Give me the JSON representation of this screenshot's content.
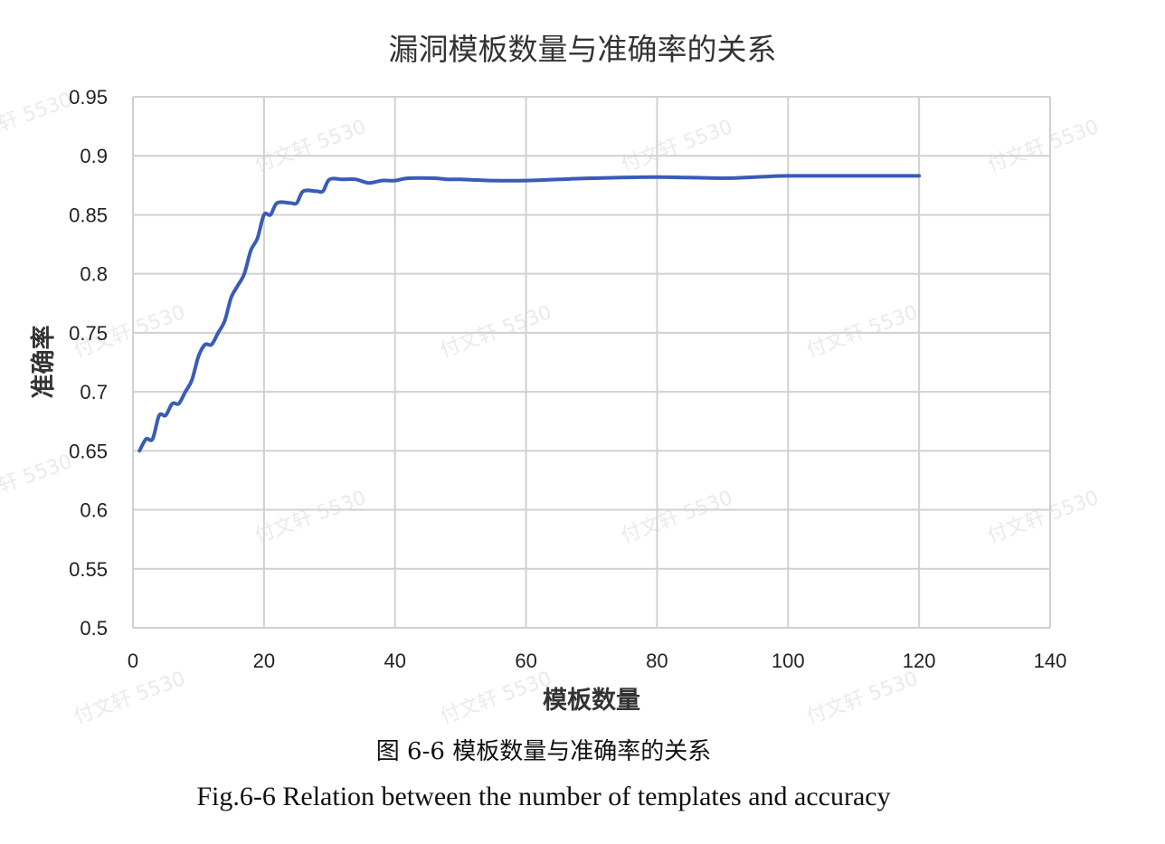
{
  "chart_data": {
    "type": "line",
    "title": "漏洞模板数量与准确率的关系",
    "xlabel": "模板数量",
    "ylabel": "准确率",
    "xlim": [
      0,
      140
    ],
    "ylim": [
      0.5,
      0.95
    ],
    "xticks": [
      0,
      20,
      40,
      60,
      80,
      100,
      120,
      140
    ],
    "yticks": [
      0.5,
      0.55,
      0.6,
      0.65,
      0.7,
      0.75,
      0.8,
      0.85,
      0.9,
      0.95
    ],
    "xtick_labels": [
      "0",
      "20",
      "40",
      "60",
      "80",
      "100",
      "120",
      "140"
    ],
    "ytick_labels": [
      "0.5",
      "0.55",
      "0.6",
      "0.65",
      "0.7",
      "0.75",
      "0.8",
      "0.85",
      "0.9",
      "0.95"
    ],
    "grid": true,
    "legend": "none",
    "series": [
      {
        "color": "#3a5bb8",
        "x": [
          1,
          2,
          3,
          4,
          5,
          6,
          7,
          8,
          9,
          10,
          11,
          12,
          13,
          14,
          15,
          16,
          17,
          18,
          19,
          20,
          21,
          22,
          24,
          25,
          26,
          28,
          29,
          30,
          32,
          34,
          36,
          38,
          40,
          42,
          46,
          48,
          50,
          55,
          60,
          65,
          70,
          80,
          90,
          95,
          100,
          110,
          120
        ],
        "y": [
          0.65,
          0.66,
          0.66,
          0.68,
          0.68,
          0.69,
          0.69,
          0.7,
          0.71,
          0.73,
          0.74,
          0.74,
          0.75,
          0.76,
          0.78,
          0.79,
          0.8,
          0.82,
          0.83,
          0.85,
          0.85,
          0.86,
          0.86,
          0.86,
          0.87,
          0.87,
          0.87,
          0.88,
          0.88,
          0.88,
          0.877,
          0.879,
          0.879,
          0.881,
          0.881,
          0.88,
          0.88,
          0.879,
          0.879,
          0.88,
          0.881,
          0.882,
          0.881,
          0.882,
          0.883,
          0.883,
          0.883
        ]
      }
    ]
  },
  "caption": {
    "cn": "图 6-6 模板数量与准确率的关系",
    "en": "Fig.6-6 Relation between the number of templates and accuracy"
  },
  "watermark": {
    "text": "付文轩 5530"
  }
}
